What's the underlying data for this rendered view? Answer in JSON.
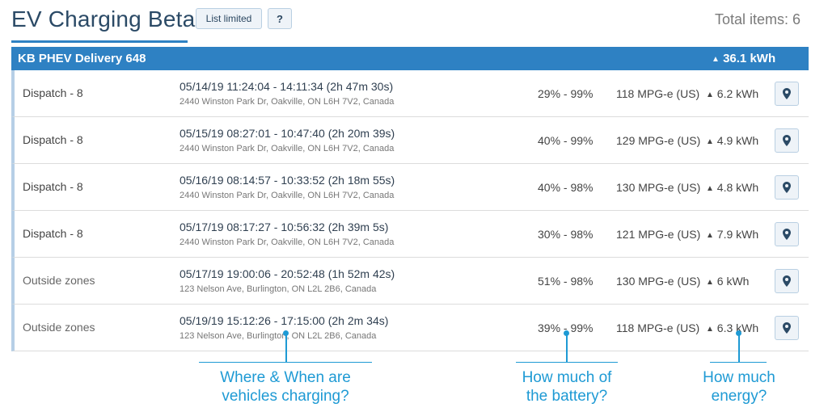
{
  "page": {
    "title": "EV Charging Beta",
    "list_limited_label": "List limited",
    "help_label": "?",
    "total_items": "Total items: 6"
  },
  "group": {
    "name": "KB PHEV Delivery 648",
    "energy": "36.1 kWh"
  },
  "rows": [
    {
      "zone": "Dispatch - 8",
      "time": "05/14/19 11:24:04 - 14:11:34 (2h 47m 30s)",
      "address": "2440 Winston Park Dr, Oakville, ON L6H 7V2, Canada",
      "battery": "29% - 99%",
      "mpg": "118 MPG-e (US)",
      "kwh": "6.2 kWh"
    },
    {
      "zone": "Dispatch - 8",
      "time": "05/15/19 08:27:01 - 10:47:40 (2h 20m 39s)",
      "address": "2440 Winston Park Dr, Oakville, ON L6H 7V2, Canada",
      "battery": "40% - 99%",
      "mpg": "129 MPG-e (US)",
      "kwh": "4.9 kWh"
    },
    {
      "zone": "Dispatch - 8",
      "time": "05/16/19 08:14:57 - 10:33:52 (2h 18m 55s)",
      "address": "2440 Winston Park Dr, Oakville, ON L6H 7V2, Canada",
      "battery": "40% - 98%",
      "mpg": "130 MPG-e (US)",
      "kwh": "4.8 kWh"
    },
    {
      "zone": "Dispatch - 8",
      "time": "05/17/19 08:17:27 - 10:56:32 (2h 39m 5s)",
      "address": "2440 Winston Park Dr, Oakville, ON L6H 7V2, Canada",
      "battery": "30% - 98%",
      "mpg": "121 MPG-e (US)",
      "kwh": "7.9 kWh"
    },
    {
      "zone": "Outside zones",
      "time": "05/17/19 19:00:06 - 20:52:48 (1h 52m 42s)",
      "address": "123 Nelson Ave, Burlington, ON L2L 2B6, Canada",
      "battery": "51% - 98%",
      "mpg": "130 MPG-e (US)",
      "kwh": "6 kWh"
    },
    {
      "zone": "Outside zones",
      "time": "05/19/19 15:12:26 - 17:15:00 (2h 2m 34s)",
      "address": "123 Nelson Ave, Burlington, ON L2L 2B6, Canada",
      "battery": "39% - 99%",
      "mpg": "118 MPG-e (US)",
      "kwh": "6.3 kWh"
    }
  ],
  "annotations": {
    "where_when": [
      "Where & When are",
      "vehicles charging?"
    ],
    "battery": [
      "How much of",
      "the battery?"
    ],
    "energy": [
      "How much",
      "energy?"
    ]
  },
  "icons": {
    "map": "map-pin-icon",
    "energy_up": "triangle-up-icon"
  },
  "colors": {
    "accent": "#2e81c3",
    "annotation": "#1e9ad4",
    "title": "#2b4a66"
  }
}
